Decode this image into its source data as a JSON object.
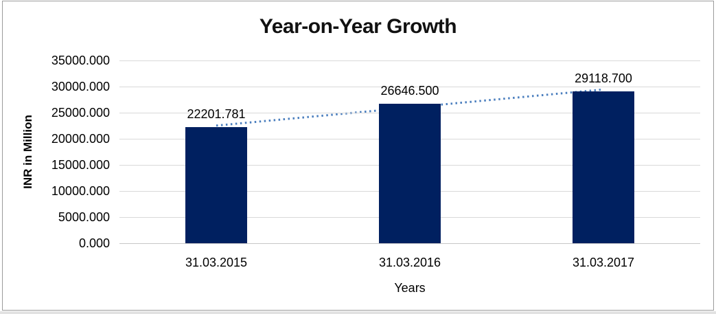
{
  "chart_data": {
    "type": "bar",
    "title": "Year-on-Year Growth",
    "xlabel": "Years",
    "ylabel": "INR in Million",
    "categories": [
      "31.03.2015",
      "31.03.2016",
      "31.03.2017"
    ],
    "series": [
      {
        "name": "INR in Million",
        "values": [
          22201.781,
          26646.5,
          29118.7
        ]
      }
    ],
    "data_labels": [
      "22201.781",
      "26646.500",
      "29118.700"
    ],
    "ylim": [
      0,
      35000
    ],
    "ytick_step": 5000,
    "ytick_labels": [
      "0.000",
      "5000.000",
      "10000.000",
      "15000.000",
      "20000.000",
      "25000.000",
      "30000.000",
      "35000.000"
    ],
    "grid": true,
    "legend": "none",
    "trendline": {
      "type": "linear",
      "style": "dotted"
    },
    "colors": {
      "bar": "#002060",
      "trendline": "#4a7ebe",
      "gridline": "#d9d9d9",
      "axis_line": "#c6c6c6",
      "text": "#000000",
      "title_text": "#111111",
      "frame_border": "#9b9b9b"
    }
  }
}
